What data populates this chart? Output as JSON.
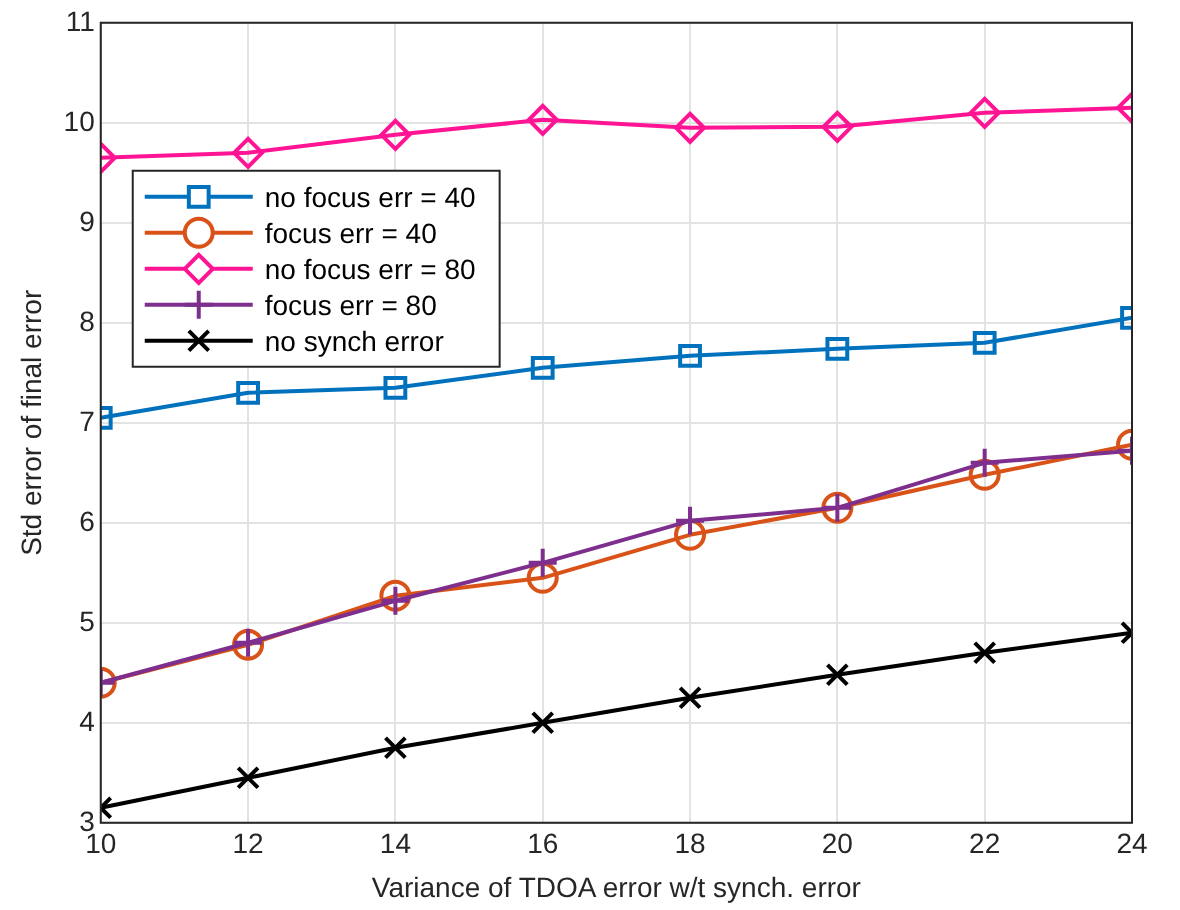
{
  "chart_data": {
    "type": "line",
    "xlabel": "Variance of TDOA error w/t synch. error",
    "ylabel": "Std error of final error",
    "x": [
      10,
      12,
      14,
      16,
      18,
      20,
      22,
      24
    ],
    "series": [
      {
        "name": "no focus err = 40",
        "color": "#0072bd",
        "marker": "square",
        "values": [
          7.05,
          7.3,
          7.35,
          7.55,
          7.67,
          7.74,
          7.8,
          8.05
        ]
      },
      {
        "name": "focus err = 40",
        "color": "#d95319",
        "marker": "circle",
        "values": [
          4.4,
          4.78,
          5.27,
          5.45,
          5.88,
          6.15,
          6.48,
          6.78
        ]
      },
      {
        "name": "no focus err = 80",
        "color": "#ff1493",
        "marker": "diamond",
        "values": [
          9.65,
          9.7,
          9.88,
          10.03,
          9.95,
          9.96,
          10.1,
          10.15
        ]
      },
      {
        "name": "focus err = 80",
        "color": "#7e2f8e",
        "marker": "cross",
        "values": [
          4.4,
          4.8,
          5.22,
          5.6,
          6.02,
          6.15,
          6.6,
          6.72
        ]
      },
      {
        "name": "no synch error",
        "color": "#000000",
        "marker": "x",
        "values": [
          3.15,
          3.45,
          3.75,
          4.0,
          4.25,
          4.48,
          4.7,
          4.9
        ]
      }
    ],
    "xlim": [
      10,
      24
    ],
    "xticks": [
      10,
      12,
      14,
      16,
      18,
      20,
      22,
      24
    ],
    "ylim": [
      3,
      11
    ],
    "yticks": [
      3,
      4,
      5,
      6,
      7,
      8,
      9,
      10,
      11
    ],
    "grid": true,
    "legend": "top left",
    "line_style": "solid"
  }
}
